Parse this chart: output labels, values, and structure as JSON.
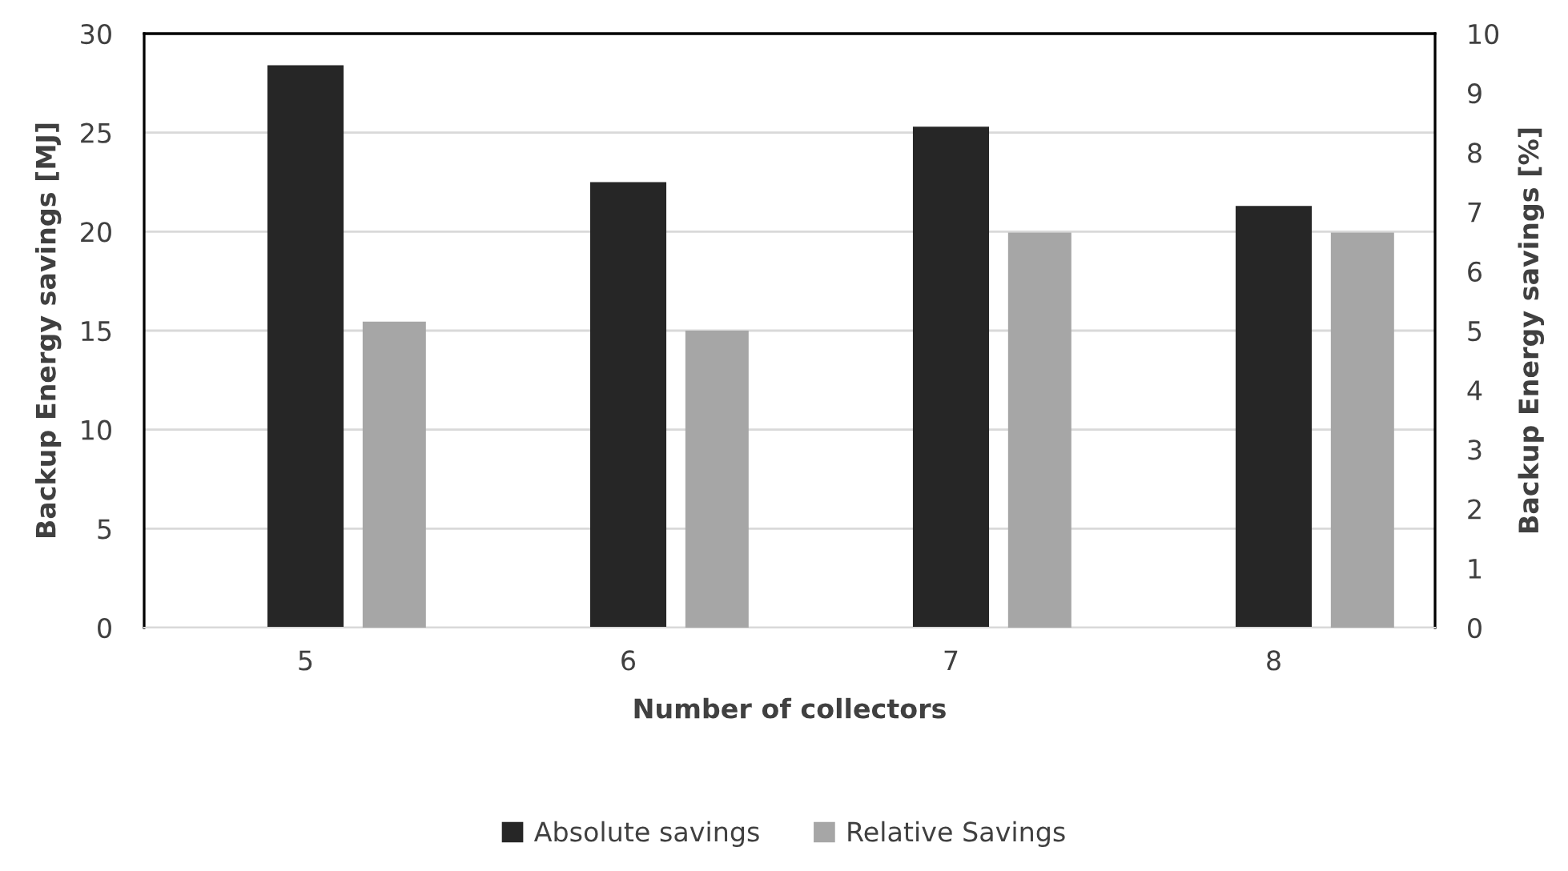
{
  "chart_data": {
    "type": "bar",
    "xlabel": "Number of collectors",
    "ylabel": "Backup Energy savings [MJ]",
    "y2label": "Backup Energy savings [%]",
    "categories": [
      "5",
      "6",
      "7",
      "8"
    ],
    "series": [
      {
        "name": "Absolute savings",
        "color": "#262626",
        "values": [
          28.4,
          22.5,
          25.3,
          21.3
        ]
      },
      {
        "name": "Relative Savings",
        "color": "#a6a6a6",
        "axis": "y2",
        "values": [
          5.15,
          5.0,
          6.65,
          6.65
        ]
      }
    ],
    "ylim": [
      0,
      30
    ],
    "yticks": [
      0,
      5,
      10,
      15,
      20,
      25,
      30
    ],
    "y2lim": [
      0,
      10
    ],
    "y2ticks": [
      0,
      1,
      2,
      3,
      4,
      5,
      6,
      7,
      8,
      9,
      10
    ],
    "grid": "y",
    "legend": "bottom"
  }
}
